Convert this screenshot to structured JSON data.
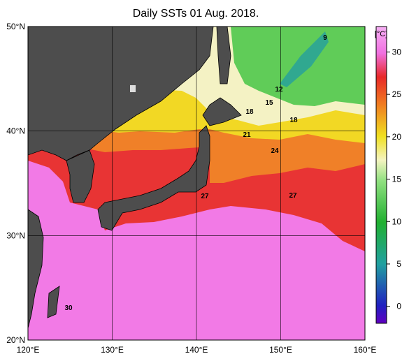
{
  "title": "Daily SSTs 01 Aug. 2018.",
  "map": {
    "lon_range": [
      120,
      160
    ],
    "lat_range": [
      20,
      50
    ],
    "lon_ticks": [
      {
        "value": 120,
        "label": "120°E"
      },
      {
        "value": 130,
        "label": "130°E"
      },
      {
        "value": 140,
        "label": "140°E"
      },
      {
        "value": 150,
        "label": "150°E"
      },
      {
        "value": 160,
        "label": "160°E"
      }
    ],
    "lat_ticks": [
      {
        "value": 20,
        "label": "20°N"
      },
      {
        "value": 30,
        "label": "30°N"
      },
      {
        "value": 40,
        "label": "40°N"
      },
      {
        "value": 50,
        "label": "50°N"
      }
    ],
    "contour_labels": [
      9,
      12,
      15,
      18,
      18,
      21,
      24,
      27,
      27,
      30
    ]
  },
  "colorbar": {
    "unit": "[°C]",
    "lim": [
      -2,
      33
    ],
    "ticks": [
      0,
      5,
      10,
      15,
      20,
      25,
      30
    ]
  }
}
